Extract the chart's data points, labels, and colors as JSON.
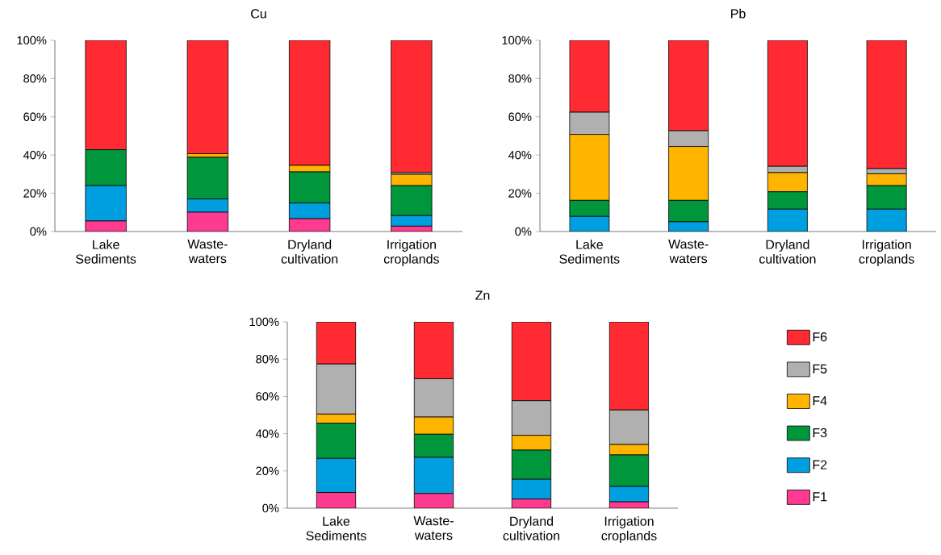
{
  "chart_data": [
    {
      "type": "bar",
      "title": "Cu",
      "stacked": true,
      "legend": false,
      "categories": [
        "Lake Sediments",
        "Waste-waters",
        "Dryland cultivation",
        "Irrigation croplands"
      ],
      "ylim": [
        0,
        100
      ],
      "yticks": [
        {
          "value": 0,
          "label": "0%"
        },
        {
          "value": 20,
          "label": "20%"
        },
        {
          "value": 40,
          "label": "40%"
        },
        {
          "value": 60,
          "label": "60%"
        },
        {
          "value": 80,
          "label": "80%"
        },
        {
          "value": 100,
          "label": "100%"
        }
      ],
      "series": [
        {
          "color": "#ff3b91",
          "values": [
            5.5,
            10.1,
            6.7,
            2.8
          ]
        },
        {
          "color": "#00a0e0",
          "values": [
            18.5,
            6.9,
            8.2,
            5.5
          ]
        },
        {
          "color": "#00963c",
          "values": [
            18.8,
            21.8,
            16.3,
            15.7
          ]
        },
        {
          "color": "#ffb400",
          "values": [
            null,
            1.9,
            3.4,
            5.9
          ]
        },
        {
          "color": "#b0b0b0",
          "values": [
            0,
            null,
            0,
            1.0
          ]
        },
        {
          "color": "#ff2a32",
          "values": [
            57.2,
            59.3,
            65.4,
            69.1
          ]
        }
      ]
    },
    {
      "type": "bar",
      "title": "Pb",
      "stacked": true,
      "legend": false,
      "categories": [
        "Lake Sediments",
        "Waste-waters",
        "Dryland cultivation",
        "Irrigation croplands"
      ],
      "ylim": [
        0,
        100
      ],
      "yticks": [
        {
          "value": 0,
          "label": "0%"
        },
        {
          "value": 20,
          "label": "20%"
        },
        {
          "value": 40,
          "label": "40%"
        },
        {
          "value": 60,
          "label": "60%"
        },
        {
          "value": 80,
          "label": "80%"
        },
        {
          "value": 100,
          "label": "100%"
        }
      ],
      "series": [
        {
          "color": "#00a0e0",
          "values": [
            7.9,
            5.1,
            11.7,
            11.7
          ]
        },
        {
          "color": "#00963c",
          "values": [
            8.4,
            11.2,
            9.1,
            12.3
          ]
        },
        {
          "color": "#ffb400",
          "values": [
            34.5,
            28.2,
            10.0,
            6.2
          ]
        },
        {
          "color": "#b0b0b0",
          "values": [
            11.6,
            8.2,
            3.3,
            2.7
          ]
        },
        {
          "color": "#ff2a32",
          "values": [
            37.6,
            47.3,
            65.9,
            67.1
          ]
        }
      ]
    },
    {
      "type": "bar",
      "title": "Zn",
      "stacked": true,
      "legend": "right",
      "categories": [
        "Lake Sediments",
        "Waste-waters",
        "Dryland cultivation",
        "Irrigation croplands"
      ],
      "ylim": [
        0,
        100
      ],
      "yticks": [
        {
          "value": 0,
          "label": "0%"
        },
        {
          "value": 20,
          "label": "20%"
        },
        {
          "value": 40,
          "label": "40%"
        },
        {
          "value": 60,
          "label": "60%"
        },
        {
          "value": 80,
          "label": "80%"
        },
        {
          "value": 100,
          "label": "100%"
        }
      ],
      "series": [
        {
          "name": "F1",
          "color": "#ff3b91",
          "values": [
            8.4,
            7.9,
            4.9,
            3.4
          ]
        },
        {
          "name": "F2",
          "color": "#00a0e0",
          "values": [
            18.3,
            19.4,
            10.6,
            8.3
          ]
        },
        {
          "name": "F3",
          "color": "#00963c",
          "values": [
            18.9,
            12.4,
            15.7,
            16.9
          ]
        },
        {
          "name": "F4",
          "color": "#ffb400",
          "values": [
            4.9,
            9.2,
            7.9,
            5.6
          ]
        },
        {
          "name": "F5",
          "color": "#b0b0b0",
          "values": [
            26.9,
            20.6,
            18.6,
            18.5
          ]
        },
        {
          "name": "F6",
          "color": "#ff2a32",
          "values": [
            22.6,
            30.5,
            42.3,
            47.3
          ]
        }
      ]
    }
  ]
}
